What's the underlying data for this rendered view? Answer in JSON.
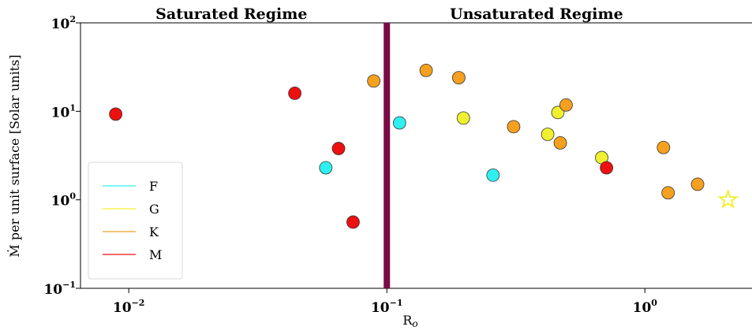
{
  "chart_data": {
    "type": "scatter",
    "xlabel": "R",
    "xlabel_subscript": "o",
    "ylabel": "Ṁ per unit surface [Solar units]",
    "xscale": "log",
    "yscale": "log",
    "xlim": [
      0.0065,
      2.6
    ],
    "ylim": [
      0.1,
      100
    ],
    "x_ticks": [
      {
        "value": 0.01,
        "base": "10",
        "exp": "−2"
      },
      {
        "value": 0.1,
        "base": "10",
        "exp": "−1"
      },
      {
        "value": 1,
        "base": "10",
        "exp": "0"
      }
    ],
    "y_ticks": [
      {
        "value": 0.1,
        "base": "10",
        "exp": "−1"
      },
      {
        "value": 1,
        "base": "10",
        "exp": "0"
      },
      {
        "value": 10,
        "base": "10",
        "exp": "1"
      },
      {
        "value": 100,
        "base": "10",
        "exp": "2"
      }
    ],
    "divider": {
      "x": 0.1,
      "color": "#7a0a46"
    },
    "regions": [
      {
        "label": "Saturated Regime",
        "x": 0.025
      },
      {
        "label": "Unsaturated Regime",
        "x": 0.38
      }
    ],
    "legend": {
      "placement": "lower-left",
      "entries": [
        {
          "label": "F",
          "color": "#2ef0f0"
        },
        {
          "label": "G",
          "color": "#f0f030"
        },
        {
          "label": "K",
          "color": "#f0a020"
        },
        {
          "label": "M",
          "color": "#ee1010"
        }
      ]
    },
    "series": [
      {
        "name": "F",
        "color": "#2ef0f0",
        "points": [
          [
            0.058,
            2.3
          ],
          [
            0.112,
            7.4
          ],
          [
            0.258,
            1.9
          ]
        ]
      },
      {
        "name": "G",
        "color": "#f0f030",
        "points": [
          [
            0.198,
            8.4
          ],
          [
            0.42,
            5.5
          ],
          [
            0.46,
            9.7
          ],
          [
            0.68,
            3.0
          ]
        ]
      },
      {
        "name": "K",
        "color": "#f5a01e",
        "points": [
          [
            0.089,
            22
          ],
          [
            0.142,
            29
          ],
          [
            0.19,
            24
          ],
          [
            0.31,
            6.7
          ],
          [
            0.47,
            4.4
          ],
          [
            0.495,
            11.8
          ],
          [
            1.18,
            3.9
          ],
          [
            1.23,
            1.2
          ],
          [
            1.6,
            1.5
          ]
        ]
      },
      {
        "name": "M",
        "color": "#ee1010",
        "points": [
          [
            0.0089,
            9.3
          ],
          [
            0.044,
            16
          ],
          [
            0.065,
            3.8
          ],
          [
            0.074,
            0.56
          ],
          [
            0.71,
            2.3
          ]
        ]
      }
    ],
    "sun": {
      "x": 2.1,
      "y": 1.0,
      "color": "#f0f030"
    }
  }
}
